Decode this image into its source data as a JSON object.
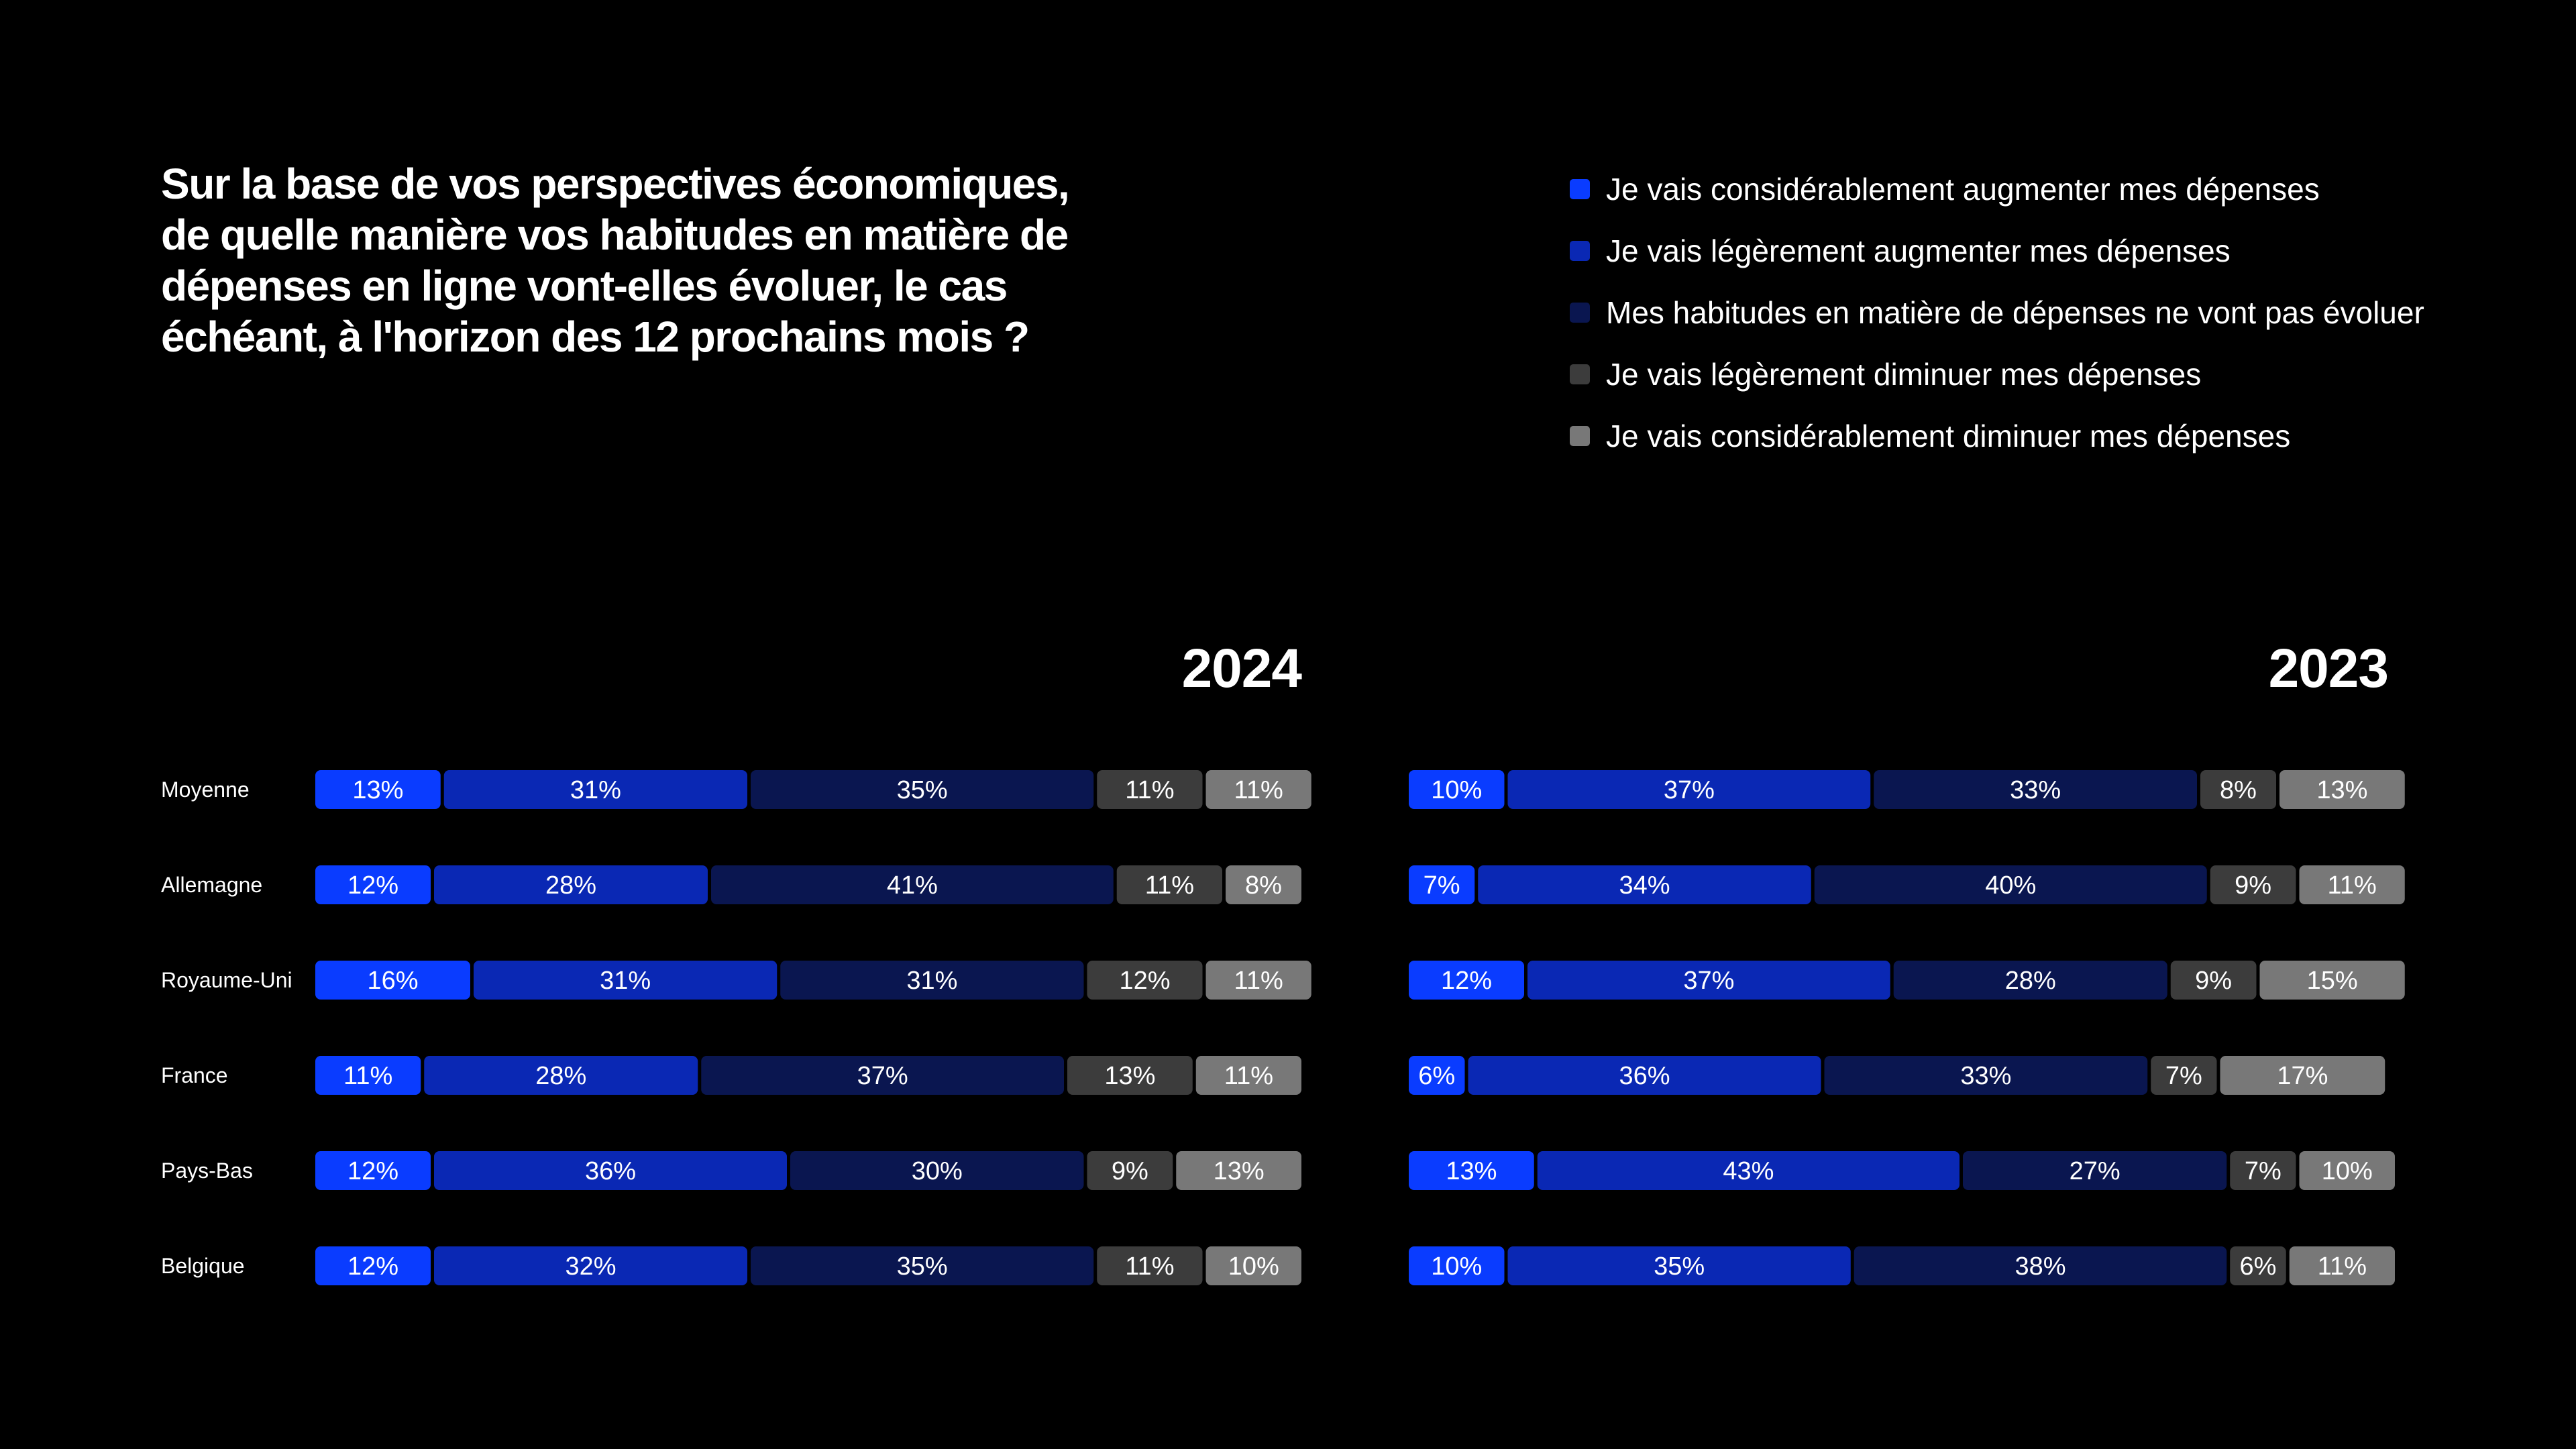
{
  "question": "Sur la base de vos perspectives économiques, de quelle manière vos habitudes en matière de dépenses en ligne vont-elles évoluer, le cas échéant, à l'horizon des 12 prochains mois ?",
  "legend": [
    {
      "label": "Je vais considérablement augmenter mes dépenses",
      "color": "#0A3CFF"
    },
    {
      "label": "Je vais légèrement augmenter mes dépenses",
      "color": "#0A28B4"
    },
    {
      "label": "Mes habitudes en matière de dépenses ne vont pas évoluer",
      "color": "#0A1650"
    },
    {
      "label": "Je vais légèrement diminuer mes dépenses",
      "color": "#3C3C3C"
    },
    {
      "label": "Je vais considérablement diminuer mes dépenses",
      "color": "#787878"
    }
  ],
  "chart_data": [
    {
      "type": "bar",
      "title": "2024",
      "categories": [
        "Moyenne",
        "Allemagne",
        "Royaume-Uni",
        "France",
        "Pays-Bas",
        "Belgique"
      ],
      "series": [
        {
          "name": "Je vais considérablement augmenter mes dépenses",
          "values": [
            13,
            12,
            16,
            11,
            12,
            12
          ]
        },
        {
          "name": "Je vais légèrement augmenter mes dépenses",
          "values": [
            31,
            28,
            31,
            28,
            36,
            32
          ]
        },
        {
          "name": "Mes habitudes en matière de dépenses ne vont pas évoluer",
          "values": [
            35,
            41,
            31,
            37,
            30,
            35
          ]
        },
        {
          "name": "Je vais légèrement diminuer mes dépenses",
          "values": [
            11,
            11,
            12,
            13,
            9,
            11
          ]
        },
        {
          "name": "Je vais considérablement diminuer mes dépenses",
          "values": [
            11,
            8,
            11,
            11,
            13,
            10
          ]
        }
      ]
    },
    {
      "type": "bar",
      "title": "2023",
      "categories": [
        "Moyenne",
        "Allemagne",
        "Royaume-Uni",
        "France",
        "Pays-Bas",
        "Belgique"
      ],
      "series": [
        {
          "name": "Je vais considérablement augmenter mes dépenses",
          "values": [
            10,
            7,
            12,
            6,
            13,
            10
          ]
        },
        {
          "name": "Je vais légèrement augmenter mes dépenses",
          "values": [
            37,
            34,
            37,
            36,
            43,
            35
          ]
        },
        {
          "name": "Mes habitudes en matière de dépenses ne vont pas évoluer",
          "values": [
            33,
            40,
            28,
            33,
            27,
            38
          ]
        },
        {
          "name": "Je vais légèrement diminuer mes dépenses",
          "values": [
            8,
            9,
            9,
            7,
            7,
            6
          ]
        },
        {
          "name": "Je vais considérablement diminuer mes dépenses",
          "values": [
            13,
            11,
            15,
            17,
            10,
            11
          ]
        }
      ]
    }
  ]
}
